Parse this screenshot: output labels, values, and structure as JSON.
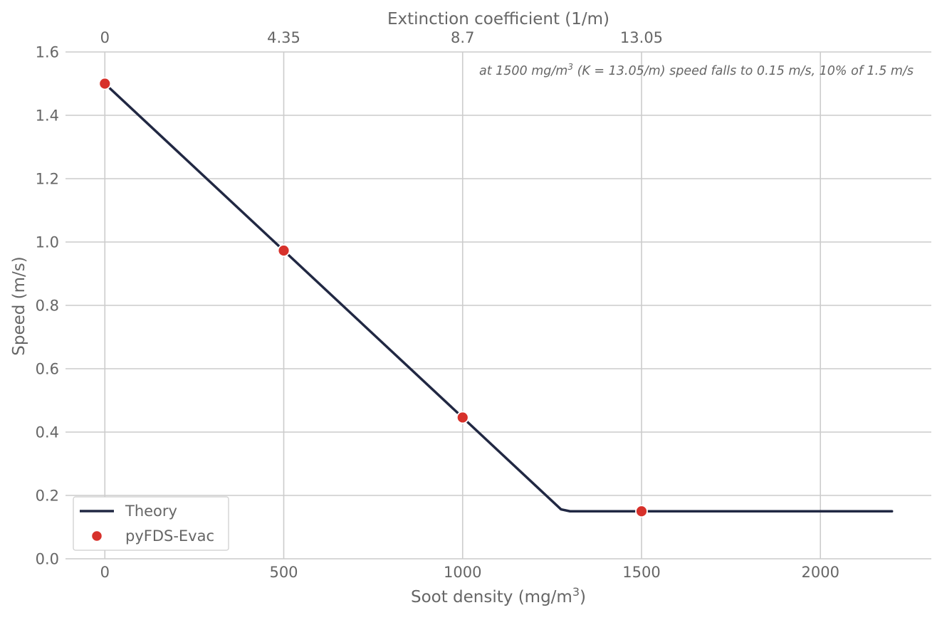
{
  "chart_data": {
    "type": "line",
    "xlabel": "Soot density (mg/m",
    "xlabel_sup": "3",
    "xlabel_end": ")",
    "ylabel": "Speed (m/s)",
    "top_xlabel": "Extinction coefficient (1/m)",
    "xlim": [
      -110,
      2310
    ],
    "ylim": [
      0,
      1.6
    ],
    "x_ticks": [
      0,
      500,
      1000,
      1500,
      2000
    ],
    "x_tick_labels": [
      "0",
      "500",
      "1000",
      "1500",
      "2000"
    ],
    "y_ticks": [
      0.0,
      0.2,
      0.4,
      0.6,
      0.8,
      1.0,
      1.2,
      1.4,
      1.6
    ],
    "y_tick_labels": [
      "0.0",
      "0.2",
      "0.4",
      "0.6",
      "0.8",
      "1.0",
      "1.2",
      "1.4",
      "1.6"
    ],
    "top_ticks": [
      0,
      500,
      1000,
      1500
    ],
    "top_tick_labels": [
      "0",
      "4.35",
      "8.7",
      "13.05"
    ],
    "grid": true,
    "legend_position": "bottom-left",
    "series": [
      {
        "name": "Theory",
        "kind": "line",
        "color": "#212843",
        "x": [
          0,
          500,
          1000,
          1275,
          1300,
          1500,
          2000,
          2200
        ],
        "y": [
          1.5,
          0.973,
          0.446,
          0.156,
          0.15,
          0.15,
          0.15,
          0.15
        ]
      },
      {
        "name": "pyFDS-Evac",
        "kind": "scatter",
        "color": "#d7312b",
        "x": [
          0,
          500,
          1000,
          1500
        ],
        "y": [
          1.5,
          0.973,
          0.446,
          0.15
        ]
      }
    ],
    "annotation": {
      "pre": "at 1500 mg/m",
      "sup": "3",
      "post": " (K = 13.05/m) speed falls to 0.15 m/s, 10% of 1.5 m/s"
    }
  }
}
